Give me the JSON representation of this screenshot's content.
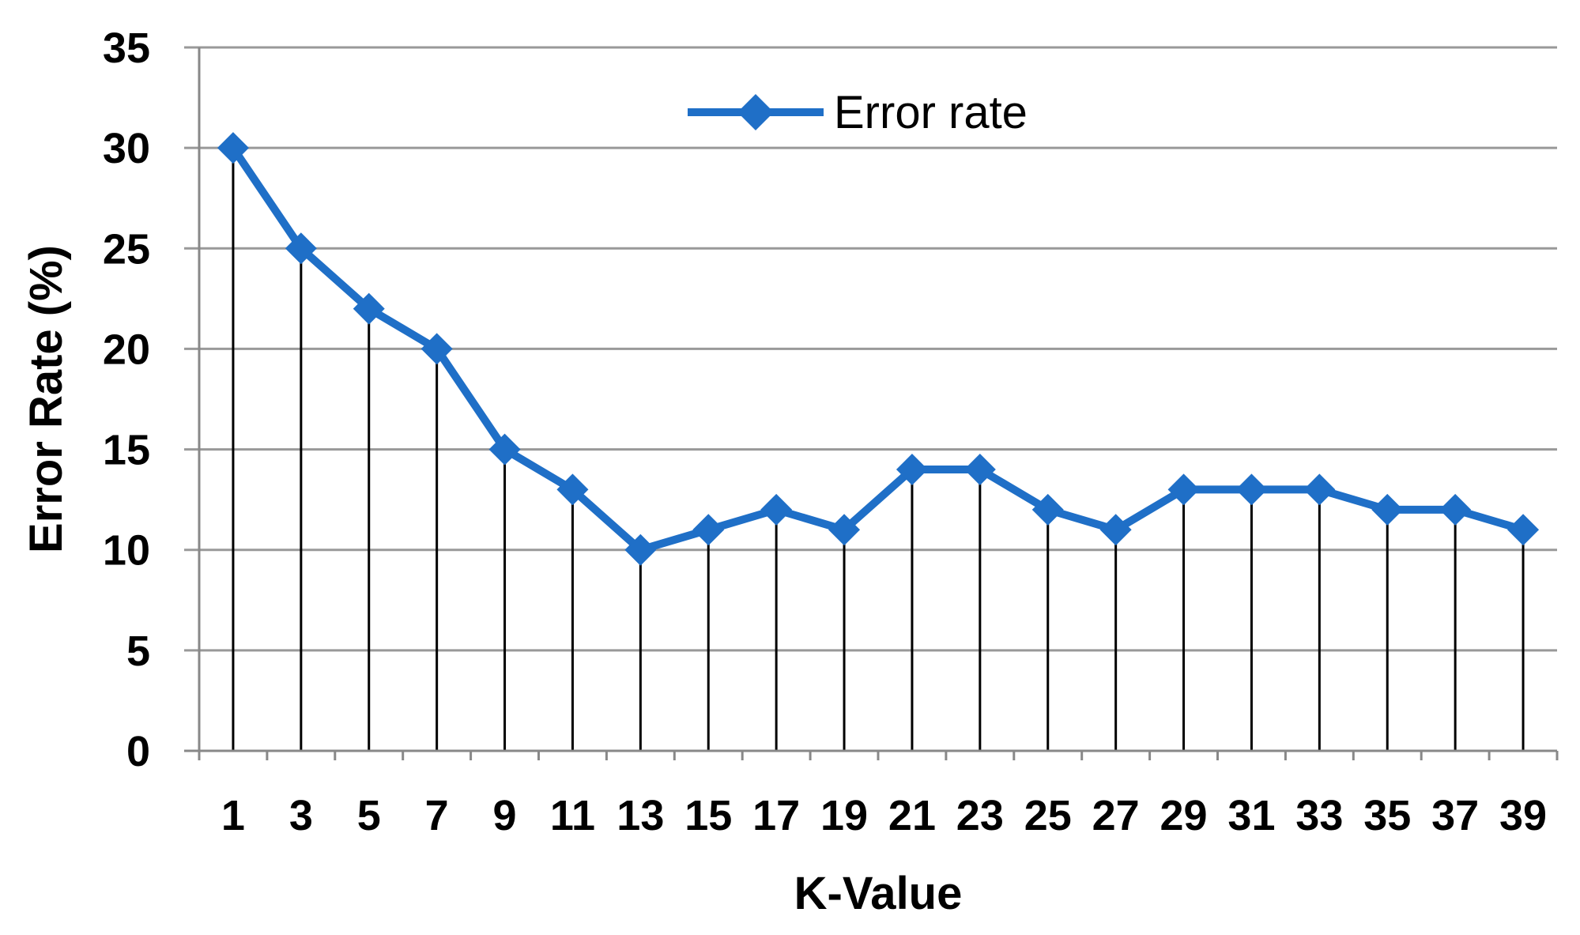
{
  "chart_data": {
    "type": "line",
    "title": "",
    "xlabel": "K-Value",
    "ylabel": "Error Rate (%)",
    "ylim": [
      0,
      35
    ],
    "y_ticks": [
      0,
      5,
      10,
      15,
      20,
      25,
      30,
      35
    ],
    "categories": [
      "1",
      "3",
      "5",
      "7",
      "9",
      "11",
      "13",
      "15",
      "17",
      "19",
      "21",
      "23",
      "25",
      "27",
      "29",
      "31",
      "33",
      "35",
      "37",
      "39"
    ],
    "series": [
      {
        "name": "Error rate",
        "color": "#1f6fc7",
        "marker": "diamond",
        "values": [
          30,
          25,
          22,
          20,
          15,
          13,
          10,
          11,
          12,
          11,
          14,
          14,
          12,
          11,
          13,
          13,
          13,
          12,
          12,
          11
        ]
      }
    ],
    "drop_lines": true,
    "grid": "horizontal",
    "legend_position": "top-center"
  }
}
